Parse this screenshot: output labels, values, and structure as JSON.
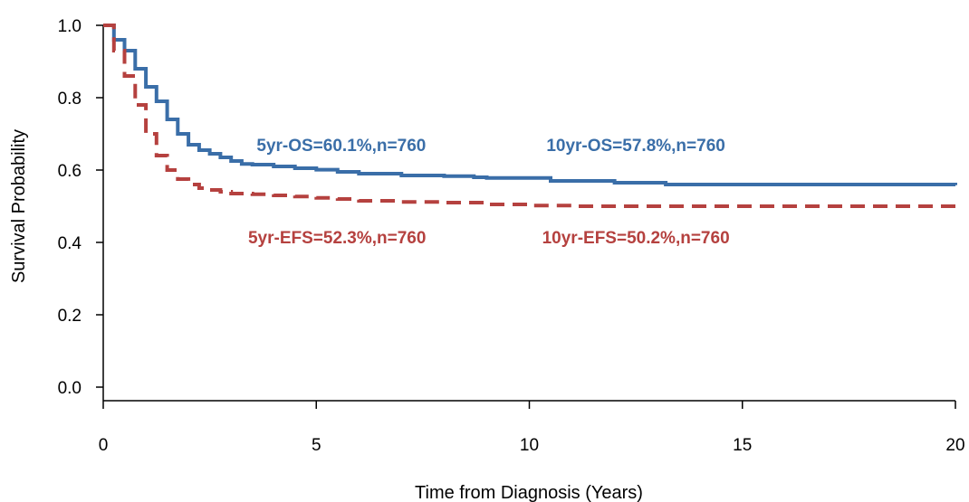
{
  "chart_data": {
    "type": "line",
    "title": "",
    "xlabel": "Time from Diagnosis (Years)",
    "ylabel": "Survival Probability",
    "xlim": [
      0,
      20
    ],
    "ylim": [
      0,
      1.0
    ],
    "x_ticks": [
      "0",
      "5",
      "10",
      "15",
      "20"
    ],
    "y_ticks": [
      "0.0",
      "0.2",
      "0.4",
      "0.6",
      "0.8",
      "1.0"
    ],
    "grid": false,
    "legend": "none",
    "series": [
      {
        "color": "#3a6ea8",
        "style": "solid",
        "x": [
          0,
          0.25,
          0.5,
          0.75,
          1.0,
          1.25,
          1.5,
          1.75,
          2.0,
          2.25,
          2.5,
          2.75,
          3.0,
          3.25,
          3.5,
          4.0,
          4.5,
          5.0,
          5.5,
          6.0,
          7.0,
          8.0,
          8.7,
          9.0,
          10.0,
          10.5,
          11.0,
          12.0,
          13.2,
          14.0,
          16.0,
          18.0,
          20.0
        ],
        "y": [
          1.0,
          0.96,
          0.93,
          0.88,
          0.83,
          0.79,
          0.74,
          0.7,
          0.67,
          0.655,
          0.645,
          0.635,
          0.625,
          0.617,
          0.615,
          0.61,
          0.605,
          0.601,
          0.595,
          0.59,
          0.585,
          0.583,
          0.58,
          0.578,
          0.578,
          0.57,
          0.57,
          0.565,
          0.56,
          0.56,
          0.56,
          0.56,
          0.558
        ]
      },
      {
        "color": "#b5413f",
        "style": "dashed",
        "x": [
          0,
          0.25,
          0.5,
          0.75,
          1.0,
          1.25,
          1.5,
          1.75,
          2.0,
          2.25,
          2.5,
          2.75,
          3.0,
          3.5,
          4.0,
          4.5,
          5.0,
          5.5,
          6.0,
          7.0,
          8.0,
          9.0,
          10.0,
          11.0,
          12.0,
          13.0,
          14.0,
          16.0,
          18.0,
          20.0
        ],
        "y": [
          1.0,
          0.93,
          0.86,
          0.78,
          0.7,
          0.64,
          0.6,
          0.575,
          0.56,
          0.55,
          0.545,
          0.54,
          0.535,
          0.533,
          0.53,
          0.527,
          0.523,
          0.52,
          0.515,
          0.512,
          0.51,
          0.505,
          0.502,
          0.5,
          0.5,
          0.5,
          0.5,
          0.5,
          0.5,
          0.5
        ]
      }
    ],
    "annotations": [
      {
        "text": "5yr-OS=60.1%,n=760",
        "x": 3.6,
        "y": 0.67,
        "color": "#3a6ea8"
      },
      {
        "text": "10yr-OS=57.8%,n=760",
        "x": 10.4,
        "y": 0.67,
        "color": "#3a6ea8"
      },
      {
        "text": "5yr-EFS=52.3%,n=760",
        "x": 3.4,
        "y": 0.415,
        "color": "#b5413f"
      },
      {
        "text": "10yr-EFS=50.2%,n=760",
        "x": 10.3,
        "y": 0.415,
        "color": "#b5413f"
      }
    ]
  }
}
